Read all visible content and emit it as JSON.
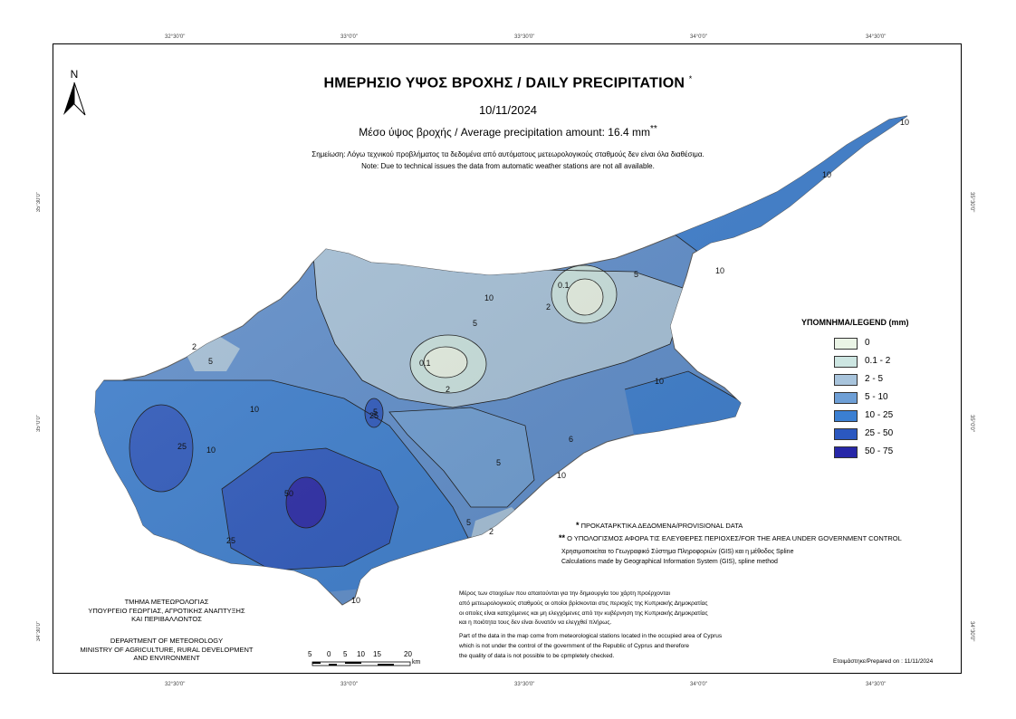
{
  "title": "ΗΜΕΡΗΣΙΟ ΥΨΟΣ ΒΡΟΧΗΣ / DAILY PRECIPITATION",
  "title_mark": "*",
  "date": "10/11/2024",
  "average": "Μέσο ύψος βροχής / Average precipitation amount: 16.4 mm",
  "average_mark": "**",
  "note_gr": "Σημείωση: Λόγω τεχνικού προβλήματος τα δεδομένα από αυτόματους μετεωρολογικούς σταθμούς δεν είναι όλα διαθέσιμα.",
  "note_en": "Note: Due to technical issues the data from automatic weather stations are not all available.",
  "north_label": "N",
  "coords": {
    "top": [
      "32°30'0\"",
      "33°0'0\"",
      "33°30'0\"",
      "34°0'0\"",
      "34°30'0\""
    ],
    "bottom": [
      "32°30'0\"",
      "33°0'0\"",
      "33°30'0\"",
      "34°0'0\"",
      "34°30'0\""
    ],
    "left": [
      "35°30'0\"",
      "35°0'0\"",
      "34°30'0\""
    ],
    "right": [
      "35°30'0\"",
      "35°0'0\"",
      "34°30'0\""
    ]
  },
  "legend": {
    "title": "ΥΠΟΜΝΗΜΑ/LEGEND (mm)",
    "items": [
      {
        "label": "0",
        "color": "#eaf4e6"
      },
      {
        "label": "0.1 - 2",
        "color": "#cde6e2"
      },
      {
        "label": "2 - 5",
        "color": "#a8c4dc"
      },
      {
        "label": "5 - 10",
        "color": "#6e9fd6"
      },
      {
        "label": "10 - 25",
        "color": "#3b7fd2"
      },
      {
        "label": "25 - 50",
        "color": "#2b58c0"
      },
      {
        "label": "50 - 75",
        "color": "#2727a8"
      }
    ]
  },
  "contour_labels": [
    "10",
    "5",
    "2",
    "0.1",
    "2",
    "0.1",
    "5",
    "10",
    "10",
    "5",
    "2",
    "10",
    "25",
    "10",
    "25",
    "5",
    "10",
    "6",
    "5",
    "2",
    "5",
    "25",
    "50",
    "10",
    "10",
    "10"
  ],
  "footnotes": {
    "provisional": "ΠΡΟΚΑΤΑΡΚΤΙΚΑ ΔΕΔΟΜΕΝΑ/PROVISIONAL DATA",
    "provisional_mark": "*",
    "gov": "Ο ΥΠΟΛΟΓΙΣΜΟΣ ΑΦΟΡΑ ΤΙΣ ΕΛΕΥΘΕΡΕΣ ΠΕΡΙΟΧΕΣ/FOR THE AREA UNDER GOVERNMENT CONTROL",
    "gov_mark": "**",
    "gis_gr": "Χρησιμοποιείται το Γεωγραφικό Σύστημα Πληροφοριών (GIS) και η μέθοδος Spline",
    "gis_en": "Calculations made by Geographical Information System (GIS), spline method"
  },
  "notes": {
    "gr": [
      "Μέρος των στοιχείων που απαιτούνται για την δημιουργία του χάρτη προέρχονται",
      "από μετεωρολογικούς σταθμούς οι οποίοι βρίσκονται στις περιοχές της Κυπριακής Δημοκρατίας",
      "οι οποίες είναι κατεχόμενες και μη ελεγχόμενες από την κυβέρνηση της Κυπριακής Δημοκρατίας",
      "και η ποιότητα τους δεν είναι δυνατόν να ελεγχθεί πλήρως."
    ],
    "en": [
      "Part of the data in the map come from meteorological stations located in the occupied area of Cyprus",
      "which is not under the control of the government of the Republic of Cyprus and therefore",
      "the quality of data is not possible to be cpmpletely checked."
    ]
  },
  "org": {
    "gr": [
      "ΤΜΗΜΑ ΜΕΤΕΩΡΟΛΟΓΙΑΣ",
      "ΥΠΟΥΡΓΕΙΟ ΓΕΩΡΓΙΑΣ, ΑΓΡΟΤΙΚΗΣ ΑΝΑΠΤΥΞΗΣ",
      "ΚΑΙ ΠΕΡΙΒΑΛΛΟΝΤΟΣ"
    ],
    "en": [
      "DEPARTMENT OF METEOROLOGY",
      "MINISTRY OF AGRICULTURE, RURAL DEVELOPMENT",
      "AND ENVIRONMENT"
    ]
  },
  "scale": {
    "labels": [
      "5",
      "0",
      "5",
      "10",
      "15",
      "20"
    ],
    "unit": "km"
  },
  "prepared": "Ετοιμάστηκε/Prepared on : 11/11/2024"
}
